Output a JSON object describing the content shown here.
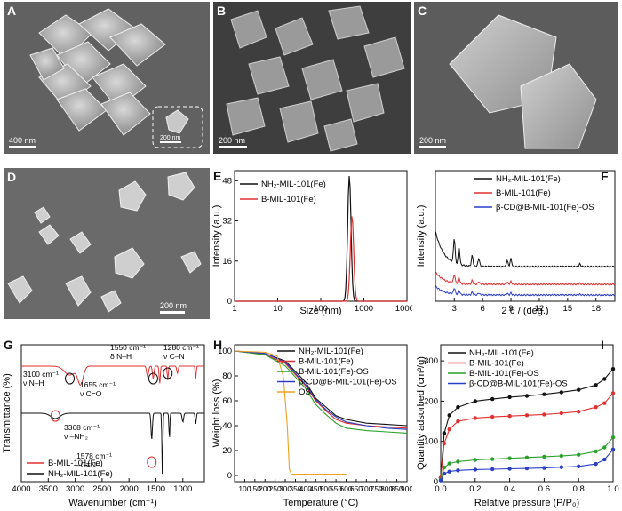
{
  "panels": {
    "A": {
      "label": "A",
      "scale": "400 nm",
      "inset_scale": "200 nm"
    },
    "B": {
      "label": "B",
      "scale": "200 nm"
    },
    "C": {
      "label": "C",
      "scale": "200 nm"
    },
    "D": {
      "label": "D",
      "scale": "200 nm"
    }
  },
  "chart_data": [
    {
      "id": "E",
      "type": "line",
      "xscale": "log",
      "xlabel": "Size (nm)",
      "ylabel": "Intensity (a.u.)",
      "xticks": [
        "1",
        "10",
        "100",
        "1000",
        "10000"
      ],
      "yticks": [
        "0",
        "16",
        "32",
        "48"
      ],
      "xlim": [
        1,
        10000
      ],
      "ylim": [
        0,
        52
      ],
      "series": [
        {
          "name": "NH₂-MIL-101(Fe)",
          "color": "#111111",
          "peak": 460,
          "height": 50
        },
        {
          "name": "B-MIL-101(Fe)",
          "color": "#e03030",
          "peak": 530,
          "height": 34
        }
      ]
    },
    {
      "id": "F",
      "type": "line",
      "xlabel": "2 θ / (deg.)",
      "ylabel": "Intensity (a.u.)",
      "xticks": [
        "3",
        "6",
        "9",
        "12",
        "15",
        "18"
      ],
      "xlim": [
        1,
        20
      ],
      "series": [
        {
          "name": "NH₂-MIL-101(Fe)",
          "color": "#111111"
        },
        {
          "name": "B-MIL-101(Fe)",
          "color": "#e03030"
        },
        {
          "name": "β-CD@B-MIL-101(Fe)-OS",
          "color": "#2a3ec8"
        }
      ]
    },
    {
      "id": "G",
      "type": "line",
      "xlabel": "Wavenumber (cm⁻¹)",
      "ylabel": "Transmittance (%)",
      "xticks": [
        "4000",
        "3500",
        "3000",
        "2500",
        "2000",
        "1500",
        "1000"
      ],
      "xlim": [
        4000,
        600
      ],
      "series": [
        {
          "name": "B-MIL-101(Fe)",
          "color": "#e03030"
        },
        {
          "name": "NH₂-MIL-101(Fe)",
          "color": "#111111"
        }
      ],
      "annotations": {
        "a1": "1550 cm⁻¹",
        "a1b": "δ N–H",
        "a2": "1280 cm⁻¹",
        "a2b": "ν C–N",
        "a3": "3100 cm⁻¹",
        "a3b": "ν N–H",
        "a4": "1655 cm⁻¹",
        "a4b": "ν C=O",
        "a5": "3368 cm⁻¹",
        "a5b": "ν –NH₂",
        "a6": "1578 cm⁻¹",
        "a6b": "–C≡N–"
      }
    },
    {
      "id": "H",
      "type": "line",
      "xlabel": "Temperature (°C)",
      "ylabel": "Weight loss (%)",
      "xticks": [
        "100",
        "150",
        "200",
        "250",
        "300",
        "350",
        "400",
        "450",
        "500",
        "550",
        "600",
        "650",
        "700",
        "750",
        "800",
        "850",
        "900"
      ],
      "yticks": [
        "0",
        "20",
        "40",
        "60",
        "80",
        "100"
      ],
      "xlim": [
        50,
        900
      ],
      "ylim": [
        -5,
        105
      ],
      "series": [
        {
          "name": "NH₂-MIL-101(Fe)",
          "color": "#111111",
          "points": [
            [
              50,
              100
            ],
            [
              200,
              98
            ],
            [
              300,
              92
            ],
            [
              400,
              75
            ],
            [
              450,
              62
            ],
            [
              500,
              55
            ],
            [
              550,
              48
            ],
            [
              600,
              45
            ],
            [
              700,
              42
            ],
            [
              800,
              41
            ],
            [
              900,
              40
            ]
          ]
        },
        {
          "name": "B-MIL-101(Fe)",
          "color": "#e03030",
          "points": [
            [
              50,
              100
            ],
            [
              200,
              97
            ],
            [
              300,
              90
            ],
            [
              400,
              72
            ],
            [
              450,
              60
            ],
            [
              500,
              52
            ],
            [
              550,
              45
            ],
            [
              600,
              42
            ],
            [
              700,
              40
            ],
            [
              800,
              39
            ],
            [
              900,
              38
            ]
          ]
        },
        {
          "name": "B-MIL-101(Fe)-OS",
          "color": "#2aa02a",
          "points": [
            [
              50,
              100
            ],
            [
              200,
              97
            ],
            [
              300,
              88
            ],
            [
              400,
              70
            ],
            [
              450,
              57
            ],
            [
              500,
              49
            ],
            [
              550,
              42
            ],
            [
              600,
              38
            ],
            [
              700,
              36
            ],
            [
              800,
              35
            ],
            [
              900,
              34
            ]
          ]
        },
        {
          "name": "β-CD@B-MIL-101(Fe)-OS",
          "color": "#2a3ec8",
          "points": [
            [
              50,
              100
            ],
            [
              200,
              98
            ],
            [
              300,
              91
            ],
            [
              400,
              73
            ],
            [
              450,
              61
            ],
            [
              500,
              53
            ],
            [
              550,
              47
            ],
            [
              600,
              43
            ],
            [
              700,
              40
            ],
            [
              800,
              38
            ],
            [
              900,
              37
            ]
          ]
        },
        {
          "name": "OS",
          "color": "#f0a020",
          "points": [
            [
              50,
              100
            ],
            [
              200,
              99
            ],
            [
              260,
              96
            ],
            [
              290,
              80
            ],
            [
              310,
              40
            ],
            [
              320,
              5
            ],
            [
              330,
              1
            ],
            [
              600,
              1
            ]
          ]
        }
      ]
    },
    {
      "id": "I",
      "type": "line",
      "xlabel": "Relative pressure (P/P₀)",
      "ylabel": "Quantity adsorbed (cm³/g)",
      "xticks": [
        "0.0",
        "0.2",
        "0.4",
        "0.6",
        "0.8",
        "1.0"
      ],
      "yticks": [
        "0",
        "100",
        "200",
        "300"
      ],
      "xlim": [
        0,
        1
      ],
      "ylim": [
        0,
        340
      ],
      "series": [
        {
          "name": "NH₂-MIL-101(Fe)",
          "color": "#111111",
          "points": [
            [
              0,
              10
            ],
            [
              0.02,
              120
            ],
            [
              0.05,
              165
            ],
            [
              0.1,
              185
            ],
            [
              0.2,
              200
            ],
            [
              0.3,
              205
            ],
            [
              0.4,
              210
            ],
            [
              0.5,
              213
            ],
            [
              0.6,
              217
            ],
            [
              0.7,
              222
            ],
            [
              0.8,
              228
            ],
            [
              0.9,
              240
            ],
            [
              0.95,
              255
            ],
            [
              1.0,
              280
            ]
          ]
        },
        {
          "name": "B-MIL-101(Fe)",
          "color": "#e03030",
          "points": [
            [
              0,
              10
            ],
            [
              0.02,
              95
            ],
            [
              0.05,
              130
            ],
            [
              0.1,
              150
            ],
            [
              0.2,
              158
            ],
            [
              0.3,
              161
            ],
            [
              0.4,
              163
            ],
            [
              0.5,
              165
            ],
            [
              0.6,
              167
            ],
            [
              0.7,
              170
            ],
            [
              0.8,
              174
            ],
            [
              0.9,
              185
            ],
            [
              0.95,
              195
            ],
            [
              1.0,
              220
            ]
          ]
        },
        {
          "name": "B-MIL-101(Fe)-OS",
          "color": "#2aa02a",
          "points": [
            [
              0,
              5
            ],
            [
              0.02,
              35
            ],
            [
              0.05,
              45
            ],
            [
              0.1,
              50
            ],
            [
              0.2,
              54
            ],
            [
              0.3,
              56
            ],
            [
              0.4,
              58
            ],
            [
              0.5,
              60
            ],
            [
              0.6,
              62
            ],
            [
              0.7,
              64
            ],
            [
              0.8,
              67
            ],
            [
              0.9,
              75
            ],
            [
              0.95,
              85
            ],
            [
              1.0,
              110
            ]
          ]
        },
        {
          "name": "β-CD@B-MIL-101(Fe)-OS",
          "color": "#2a3ec8",
          "points": [
            [
              0,
              3
            ],
            [
              0.02,
              20
            ],
            [
              0.05,
              25
            ],
            [
              0.1,
              28
            ],
            [
              0.2,
              30
            ],
            [
              0.3,
              31
            ],
            [
              0.4,
              32
            ],
            [
              0.5,
              33
            ],
            [
              0.6,
              34
            ],
            [
              0.7,
              36
            ],
            [
              0.8,
              38
            ],
            [
              0.9,
              44
            ],
            [
              0.95,
              55
            ],
            [
              1.0,
              80
            ]
          ]
        }
      ]
    }
  ]
}
